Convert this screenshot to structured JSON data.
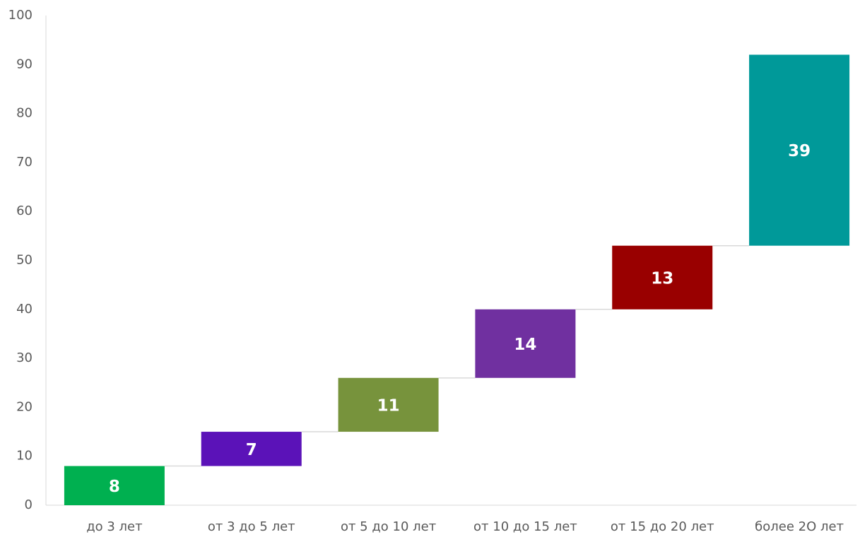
{
  "chart_data": {
    "type": "waterfall",
    "categories": [
      "до 3 лет",
      "от 3 до 5 лет",
      "от 5 до 10 лет",
      "от 10 до 15 лет",
      "от 15 до 20 лет",
      "более 2О лет"
    ],
    "values": [
      8,
      7,
      11,
      14,
      13,
      39
    ],
    "colors": [
      "#00b050",
      "#5b12b8",
      "#77933c",
      "#7030a0",
      "#990000",
      "#009999"
    ],
    "ylim": [
      0,
      100
    ],
    "yticks": [
      0,
      10,
      20,
      30,
      40,
      50,
      60,
      70,
      80,
      90,
      100
    ],
    "grid": false
  }
}
